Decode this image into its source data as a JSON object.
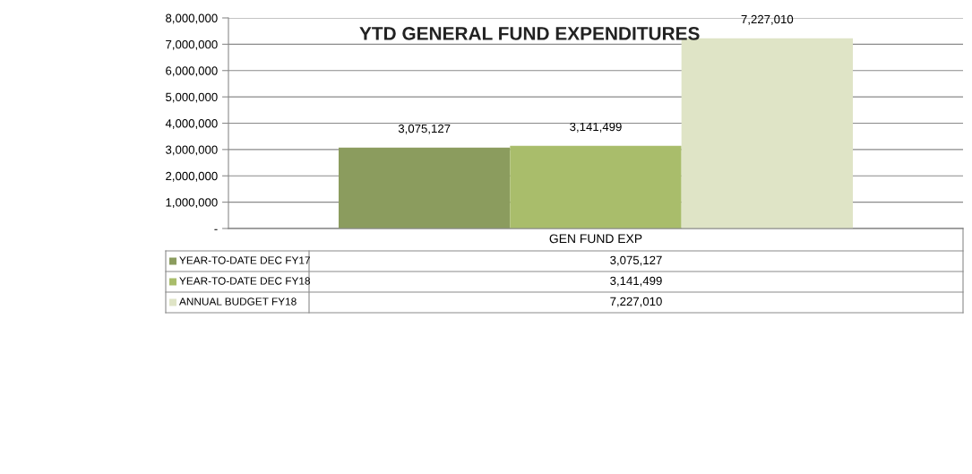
{
  "chart_data": {
    "type": "bar",
    "title": "YTD GENERAL FUND EXPENDITURES",
    "categories": [
      "GEN FUND EXP"
    ],
    "series": [
      {
        "name": "YEAR-TO-DATE DEC FY17",
        "color": "#8b9c5e",
        "values": [
          3075127
        ],
        "value_labels": [
          "3,075,127"
        ]
      },
      {
        "name": "YEAR-TO-DATE DEC FY18",
        "color": "#a9bd6b",
        "values": [
          3141499
        ],
        "value_labels": [
          "3,141,499"
        ]
      },
      {
        "name": "ANNUAL BUDGET FY18",
        "color": "#dfe4c6",
        "values": [
          7227010
        ],
        "value_labels": [
          "7,227,010"
        ]
      }
    ],
    "ylim": [
      0,
      8000000
    ],
    "yticks": [
      {
        "value": 0,
        "label": "-"
      },
      {
        "value": 1000000,
        "label": "1,000,000"
      },
      {
        "value": 2000000,
        "label": "2,000,000"
      },
      {
        "value": 3000000,
        "label": "3,000,000"
      },
      {
        "value": 4000000,
        "label": "4,000,000"
      },
      {
        "value": 5000000,
        "label": "5,000,000"
      },
      {
        "value": 6000000,
        "label": "6,000,000"
      },
      {
        "value": 7000000,
        "label": "7,000,000"
      },
      {
        "value": 8000000,
        "label": "8,000,000"
      }
    ],
    "grid": "y",
    "legend": "bottom"
  }
}
